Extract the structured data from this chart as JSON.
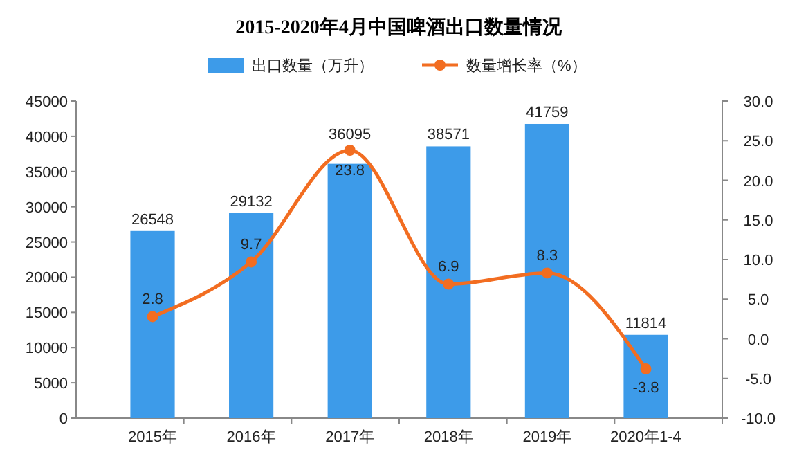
{
  "chart_data": {
    "type": "bar",
    "title": "2015-2020年4月中国啤酒出口数量情况",
    "categories": [
      "2015年",
      "2016年",
      "2017年",
      "2018年",
      "2019年",
      "2020年1-4"
    ],
    "series": [
      {
        "name": "出口数量（万升）",
        "color": "#3d9be9",
        "values": [
          26548,
          29132,
          36095,
          38571,
          41759,
          11814
        ]
      },
      {
        "name": "数量增长率（%）",
        "type": "line",
        "axis": "y2",
        "color": "#f26d21",
        "marker": "circle",
        "values": [
          2.8,
          9.7,
          23.8,
          6.9,
          8.3,
          -3.8
        ]
      }
    ],
    "ylim": [
      0,
      45000
    ],
    "yticks": [
      0,
      5000,
      10000,
      15000,
      20000,
      25000,
      30000,
      35000,
      40000,
      45000
    ],
    "y2lim": [
      -10,
      30
    ],
    "y2ticks": [
      {
        "value": -10,
        "label": "-10.0"
      },
      {
        "value": -5,
        "label": "-5.0"
      },
      {
        "value": 0,
        "label": "0.0"
      },
      {
        "value": 5,
        "label": "5.0"
      },
      {
        "value": 10,
        "label": "10.0"
      },
      {
        "value": 15,
        "label": "15.0"
      },
      {
        "value": 20,
        "label": "20.0"
      },
      {
        "value": 25,
        "label": "25.0"
      },
      {
        "value": 30,
        "label": "30.0"
      }
    ],
    "data_labels": true,
    "legend": "top",
    "grid": false
  }
}
